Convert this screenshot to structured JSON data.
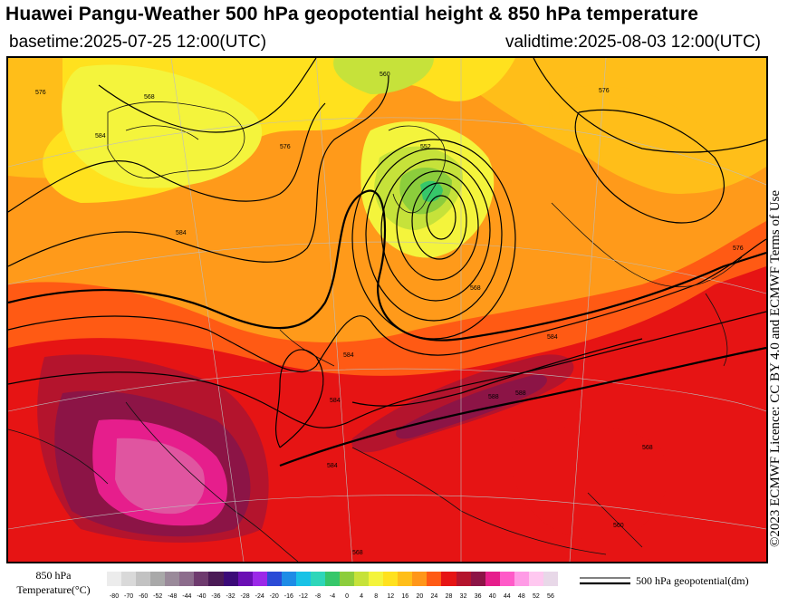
{
  "header": {
    "title": "Huawei Pangu-Weather 500 hPa geopotential height & 850 hPa temperature",
    "basetime": "basetime:2025-07-25 12:00(UTC)",
    "validtime": "validtime:2025-08-03 12:00(UTC)"
  },
  "license": "©2023 ECMWF Licence: CC BY 4.0 and ECMWF Terms of Use",
  "legend": {
    "title_line1": "850 hPa",
    "title_line2": "Temperature(°C)",
    "ticks": [
      "-80",
      "-70",
      "-60",
      "-52",
      "-48",
      "-44",
      "-40",
      "-36",
      "-32",
      "-28",
      "-24",
      "-20",
      "-16",
      "-12",
      "-8",
      "-4",
      "0",
      "4",
      "8",
      "12",
      "16",
      "20",
      "24",
      "28",
      "32",
      "36",
      "40",
      "44",
      "48",
      "52",
      "56"
    ],
    "colors": [
      "#ececec",
      "#d9d9d9",
      "#c2c2c2",
      "#a9a9a9",
      "#9a8a9a",
      "#8c6c8c",
      "#6e3a6e",
      "#4b1a56",
      "#3b0a78",
      "#6a0fb4",
      "#9b28e8",
      "#2b4bd6",
      "#1e8ce6",
      "#19c2e6",
      "#2ed6b9",
      "#36c76a",
      "#8ccd3c",
      "#c6e23a",
      "#f4f43c",
      "#ffe11e",
      "#ffbe19",
      "#ff9619",
      "#ff5a14",
      "#e61414",
      "#b4142d",
      "#8c1446",
      "#e61e8c",
      "#ff5ac8",
      "#ff9be6",
      "#ffc8f0",
      "#e8d8e8"
    ],
    "contour_label": "500 hPa geopotential(dm)"
  },
  "map": {
    "contour_labels": [
      "584",
      "568",
      "560",
      "552",
      "568",
      "576",
      "584",
      "576",
      "584",
      "576",
      "584",
      "584",
      "588",
      "588",
      "584",
      "576",
      "568",
      "560",
      "568"
    ]
  }
}
